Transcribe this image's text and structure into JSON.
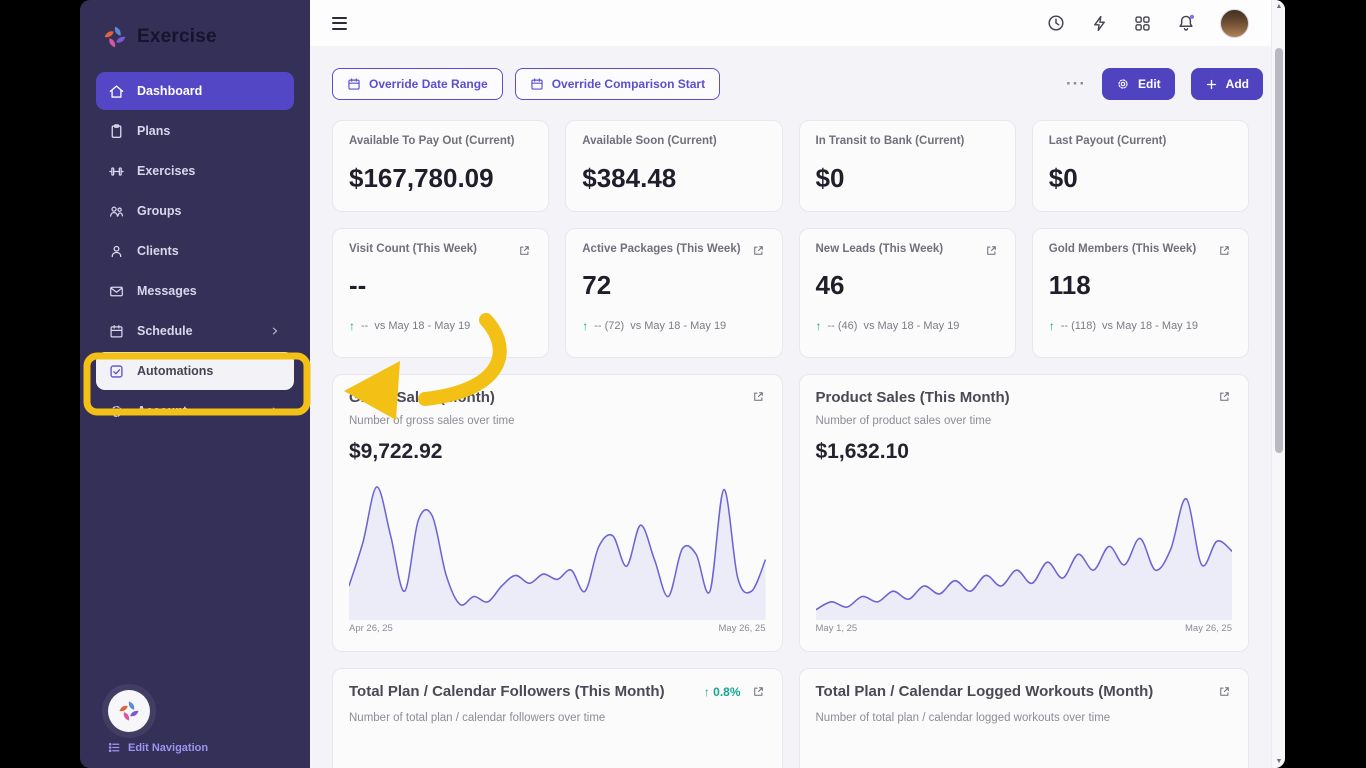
{
  "brand": {
    "name": "Exercise"
  },
  "sidebar": {
    "items": [
      {
        "label": "Dashboard",
        "state": "active"
      },
      {
        "label": "Plans"
      },
      {
        "label": "Exercises"
      },
      {
        "label": "Groups"
      },
      {
        "label": "Clients"
      },
      {
        "label": "Messages"
      },
      {
        "label": "Schedule",
        "chevron": true
      },
      {
        "label": "Automations",
        "state": "highlighted"
      },
      {
        "label": "Account",
        "chevron": true
      }
    ],
    "edit_navigation_label": "Edit Navigation"
  },
  "topbar": {
    "icons": [
      "hamburger-icon",
      "clock-icon",
      "lightning-icon",
      "apps-grid-icon",
      "bell-icon",
      "avatar"
    ],
    "bell_has_notification_dot": true
  },
  "toolbar": {
    "override_date_range": "Override Date Range",
    "override_comparison_start": "Override Comparison Start",
    "more_label": "···",
    "edit_label": "Edit",
    "add_label": "Add"
  },
  "stat_cards": [
    {
      "title": "Available To Pay Out (Current)",
      "value": "$167,780.09"
    },
    {
      "title": "Available Soon (Current)",
      "value": "$384.48"
    },
    {
      "title": "In Transit to Bank (Current)",
      "value": "$0"
    },
    {
      "title": "Last Payout (Current)",
      "value": "$0"
    }
  ],
  "metric_cards": [
    {
      "title": "Visit Count (This Week)",
      "value": "--",
      "arrow": "↑",
      "delta": "--",
      "compare": "vs May 18 - May 19"
    },
    {
      "title": "Active Packages (This Week)",
      "value": "72",
      "arrow": "↑",
      "delta": "--  (72)",
      "compare": "vs May 18 - May 19"
    },
    {
      "title": "New Leads (This Week)",
      "value": "46",
      "arrow": "↑",
      "delta": "--  (46)",
      "compare": "vs May 18 - May 19"
    },
    {
      "title": "Gold Members (This Week)",
      "value": "118",
      "arrow": "↑",
      "delta": "--  (118)",
      "compare": "vs May 18 - May 19"
    }
  ],
  "chart_data": [
    {
      "type": "area",
      "title": "Gross Sales (Month)",
      "subtitle": "Number of gross sales over time",
      "value": "$9,722.92",
      "x_start": "Apr 26, 25",
      "x_end": "May 26, 25",
      "xlabel": "date",
      "ylabel": "gross sales",
      "legend": "none",
      "grid": false,
      "values": [
        22,
        55,
        97,
        60,
        18,
        72,
        75,
        30,
        8,
        14,
        10,
        22,
        30,
        24,
        31,
        27,
        34,
        18,
        52,
        60,
        37,
        68,
        42,
        14,
        50,
        46,
        18,
        95,
        28,
        18,
        42
      ]
    },
    {
      "type": "area",
      "title": "Product Sales (This Month)",
      "subtitle": "Number of product sales over time",
      "value": "$1,632.10",
      "x_start": "May 1, 25",
      "x_end": "May 26, 25",
      "xlabel": "date",
      "ylabel": "product sales",
      "legend": "none",
      "grid": false,
      "values": [
        4,
        10,
        6,
        14,
        10,
        18,
        12,
        22,
        16,
        26,
        18,
        30,
        22,
        34,
        24,
        40,
        28,
        46,
        34,
        52,
        38,
        58,
        34,
        50,
        88,
        38,
        56,
        48
      ]
    }
  ],
  "bottom_cards": [
    {
      "title": "Total Plan / Calendar Followers (This Month)",
      "delta": "↑ 0.8%",
      "subtitle": "Number of total plan / calendar followers over time"
    },
    {
      "title": "Total Plan / Calendar Logged Workouts (Month)",
      "delta": "",
      "subtitle": "Number of total plan / calendar logged workouts over time"
    }
  ],
  "colors": {
    "sidebar_bg": "#343058",
    "accent_purple": "#5447c5",
    "annotation_yellow": "#f3c116",
    "chart_line": "#6c63d4",
    "delta_green": "#12a98e",
    "main_bg": "#f4f3f7"
  }
}
